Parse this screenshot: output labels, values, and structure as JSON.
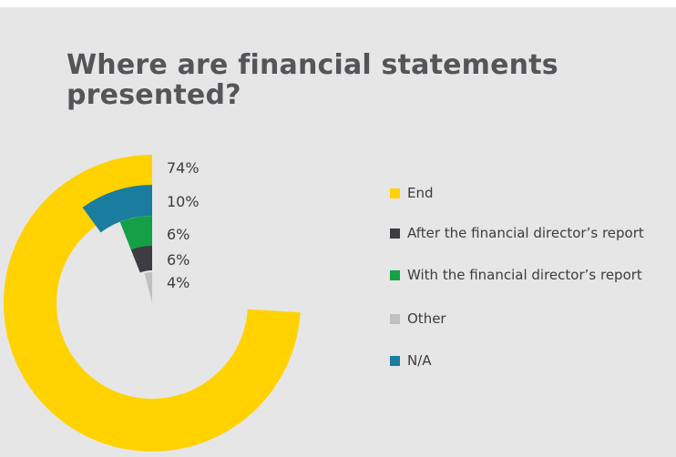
{
  "chart_data": {
    "type": "pie",
    "title": "Where are financial statements presented?",
    "style": "concentric-rings",
    "categories": [
      "End",
      "N/A",
      "With the financial director’s report",
      "After the financial director’s report",
      "Other"
    ],
    "values": [
      74,
      10,
      6,
      6,
      4
    ],
    "value_labels": [
      "74%",
      "10%",
      "6%",
      "6%",
      "4%"
    ],
    "colors": {
      "End": "#ffd200",
      "N/A": "#1a7c9e",
      "With the financial director’s report": "#14a046",
      "After the financial director’s report": "#3c3c41",
      "Other": "#c0c0c0"
    },
    "legend": {
      "position": "right",
      "entries": [
        {
          "label": "End",
          "color": "#ffd200"
        },
        {
          "label": "After the financial director’s report",
          "color": "#3c3c41"
        },
        {
          "label": "With the financial director’s report",
          "color": "#14a046"
        },
        {
          "label": "Other",
          "color": "#c0c0c0"
        },
        {
          "label": "N/A",
          "color": "#1a7c9e"
        }
      ]
    }
  }
}
